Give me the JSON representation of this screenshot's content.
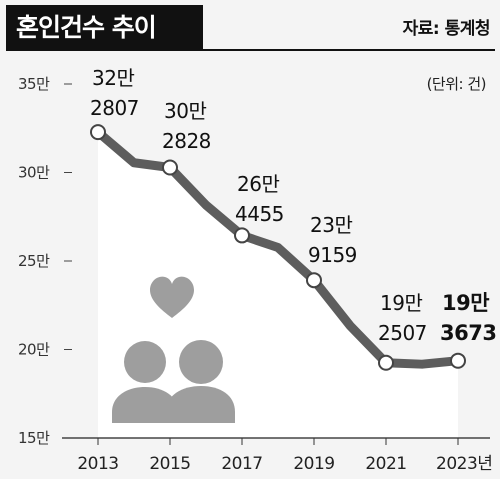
{
  "header": {
    "title": "혼인건수 추이",
    "source": "자료: 통계청"
  },
  "chart_data": {
    "type": "line",
    "title": "혼인건수 추이",
    "unit_note": "(단위: 건)",
    "x_ticks": [
      "2013",
      "2015",
      "2017",
      "2019",
      "2021",
      "2023년"
    ],
    "y_ticks": [
      "15만",
      "20만",
      "25만",
      "30만",
      "35만"
    ],
    "ylim": [
      150000,
      350000
    ],
    "xlim": [
      2013,
      2023
    ],
    "series": [
      {
        "x": [
          2013,
          2014,
          2015,
          2016,
          2017,
          2018,
          2019,
          2020,
          2021,
          2022,
          2023
        ],
        "values": [
          322807,
          305500,
          302828,
          281600,
          264455,
          257600,
          239159,
          213500,
          192507,
          191700,
          193673
        ]
      }
    ],
    "annotations": [
      {
        "year": 2013,
        "label": "32만",
        "value_label": "2807",
        "highlight": false
      },
      {
        "year": 2015,
        "label": "30만",
        "value_label": "2828",
        "highlight": false
      },
      {
        "year": 2017,
        "label": "26만",
        "value_label": "4455",
        "highlight": false
      },
      {
        "year": 2019,
        "label": "23만",
        "value_label": "9159",
        "highlight": false
      },
      {
        "year": 2021,
        "label": "19만",
        "value_label": "2507",
        "highlight": false
      },
      {
        "year": 2023,
        "label": "19만",
        "value_label": "3673",
        "highlight": true
      }
    ],
    "colors": {
      "line": "#5d5d5d",
      "area": "#ffffff",
      "marker_fill": "#ffffff",
      "illustration": "#9e9e9e"
    }
  }
}
